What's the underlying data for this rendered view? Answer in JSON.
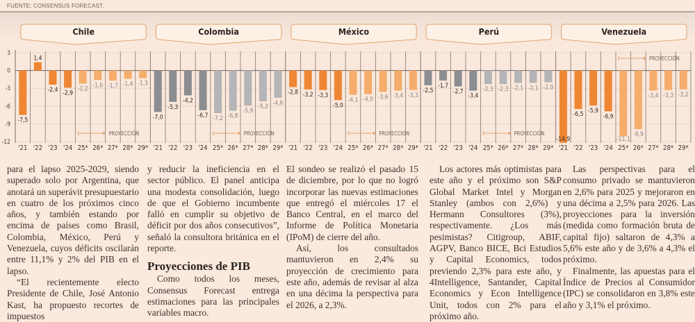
{
  "source": "FUENTE: CONSENSUS FORECAST.",
  "colors": {
    "orange_actual": "#ee8633",
    "orange_projection": "#f5ad6c",
    "gray_actual": "#8c8d91",
    "gray_projection": "#b5b4b6",
    "panel_border": "#e0a46e",
    "background": "#fbe9dd"
  },
  "chart_data": {
    "type": "bar",
    "title": "",
    "xlabel": "",
    "ylabel": "",
    "ylim": [
      -12,
      3
    ],
    "yticks": [
      "3",
      "0",
      "-3",
      "-6",
      "-9",
      "-12"
    ],
    "ytick_values": [
      3,
      0,
      -3,
      -6,
      -9,
      -12
    ],
    "grid": true,
    "projection_label": "PROYECCIÓN",
    "categories": [
      "'21",
      "'22",
      "'23",
      "'24",
      "25*",
      "26*",
      "27*",
      "28*",
      "29*"
    ],
    "projection_start_index": 4,
    "panels": [
      {
        "name": "Chile",
        "palette": "orange",
        "values": [
          -7.5,
          1.4,
          -2.4,
          -2.9,
          -2.2,
          -1.6,
          -1.7,
          -1.4,
          -1.3
        ],
        "labels": [
          "-7,5",
          "1,4",
          "-2,4",
          "-2,9",
          "-2,2",
          "-1,6",
          "-1,7",
          "-1,4",
          "-1,3"
        ],
        "projection_label_position": "bottom"
      },
      {
        "name": "Colombia",
        "palette": "gray",
        "values": [
          -7.0,
          -5.3,
          -4.2,
          -6.7,
          -7.2,
          -6.8,
          -5.9,
          -5.2,
          -4.6
        ],
        "labels": [
          "-7,0",
          "-5,3",
          "-4,2",
          "-6,7",
          "-7,2",
          "-6,8",
          "-5,9",
          "-5,2",
          "-4,6"
        ],
        "projection_label_position": "bottom"
      },
      {
        "name": "México",
        "palette": "orange",
        "values": [
          -2.8,
          -3.2,
          -3.3,
          -5.0,
          -4.1,
          -4.0,
          -3.6,
          -3.4,
          -3.3
        ],
        "labels": [
          "-2,8",
          "-3,2",
          "-3,3",
          "-5,0",
          "-4,1",
          "-4,0",
          "-3,6",
          "-3,4",
          "-3,3"
        ],
        "projection_label_position": "bottom"
      },
      {
        "name": "Perú",
        "palette": "gray",
        "values": [
          -2.5,
          -1.7,
          -2.7,
          -3.4,
          -2.3,
          -2.3,
          -2.1,
          -2.1,
          -2.0
        ],
        "labels": [
          "-2,5",
          "-1,7",
          "-2,7",
          "-3,4",
          "-2,3",
          "-2,3",
          "-2,1",
          "-2,1",
          "-2,0"
        ],
        "projection_label_position": "bottom"
      },
      {
        "name": "Venezuela",
        "palette": "orange",
        "values": [
          -14.9,
          -6.5,
          -5.9,
          -6.9,
          -11.1,
          -9.9,
          -3.4,
          -3.3,
          -3.2
        ],
        "labels": [
          "-14,9",
          "-6,5",
          "-5,9",
          "-6,9",
          "-11,1",
          "-9,9",
          "-3,4",
          "-3,3",
          "-3,2"
        ],
        "projection_label_position": "top"
      }
    ]
  },
  "article": {
    "col1": {
      "p1": "para el lapso 2025-2029, siendo superado solo por Argentina, que anotará un superávit presupuestario en cuatro de los próximos cinco años, y también estando por encima de países como Brasil, Colombia, México, Perú y Venezuela, cuyos déficits oscilarán entre 11,1% y 2% del PIB en el lapso.",
      "p2": "“El recientemente electo Presidente de Chile, José Antonio Kast, ha propuesto recortes de impuestos"
    },
    "col2": {
      "p1": "y reducir la ineficiencia en el sector público. El panel anticipa una modesta consolidación, luego de que el Gobierno incumbente falló en cumplir su objetivo de déficit por dos años consecutivos”, señaló la consultora británica en el reporte.",
      "heading": "Proyecciones de PIB",
      "p2": "Como todos los meses, Consensus Forecast entrega estimaciones para las principales variables macro."
    },
    "col3": {
      "p1": "El sondeo se realizó el pasado 15 de diciembre, por lo que no logró incorporar las nuevas estimaciones que entregó el miércoles 17 el Banco Central, en el marco del Informe de Política Monetaria (IPoM) de cierre del año.",
      "p2": "Así, los consultados mantuvieron en 2,4% su proyección de crecimiento para este año, además de revisar al alza en una décima la perspectiva para el 2026, a 2,3%."
    },
    "col4": {
      "p1": "Los actores más optimistas para este año y el próximo son S&P Global Market Intel y Morgan Stanley (ambos con 2,6%) y Hermann Consultores (3%), respectivamente. ¿Los más pesimistas? Citigroup, ABIF, AGPV, Banco BICE, Bci Estudios y Capital Economics, todos previendo 2,3% para este año, y 4Intelligence, Santander, Capital Economics y Econ Intelligence Unit, todos con 2% para el próximo año."
    },
    "col5": {
      "p1": "Las perspectivas para el consumo privado se mantuvieron en 2,6% para 2025 y mejoraron en una décima a 2,5% para 2026. Las proyecciones para la inversión (medida como formación bruta de capital fijo) saltaron de 4,3% a 5,6% este año y de 3,6% a 4,3% el próximo.",
      "p2": "Finalmente, las apuestas para el Índice de Precios al Consumidor (IPC) se consolidaron en 3,8% este año y 3,1% el próximo."
    }
  }
}
